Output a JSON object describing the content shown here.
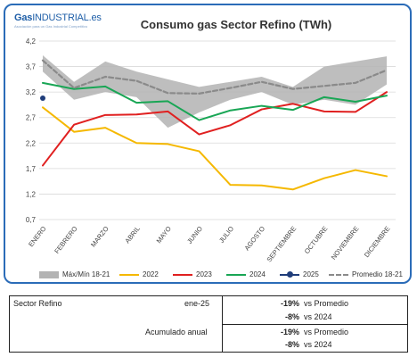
{
  "logo": {
    "brand_bold": "Gas",
    "brand_rest": "INDUSTRIAL.es",
    "tagline": "Asociación para un Gas Industrial Competitivo"
  },
  "chart_data": {
    "type": "line",
    "title": "Consumo gas Sector Refino (TWh)",
    "categories": [
      "ENERO",
      "FEBRERO",
      "MARZO",
      "ABRIL",
      "MAYO",
      "JUNIO",
      "JULIO",
      "AGOSTO",
      "SEPTIEMBRE",
      "OCTUBRE",
      "NOVIEMBRE",
      "DICIEMBRE"
    ],
    "ylim": [
      0.7,
      4.2
    ],
    "yticks": [
      "0,7",
      "1,2",
      "1,7",
      "2,2",
      "2,7",
      "3,2",
      "3,7",
      "4,2"
    ],
    "yticks_values": [
      0.7,
      1.2,
      1.7,
      2.2,
      2.7,
      3.2,
      3.7,
      4.2
    ],
    "grid": true,
    "legend_position": "bottom",
    "band": {
      "name": "Máx/Mín 18-21",
      "color": "#b3b3b3",
      "max": [
        3.92,
        3.4,
        3.8,
        3.6,
        3.45,
        3.3,
        3.4,
        3.5,
        3.3,
        3.7,
        3.8,
        3.9
      ],
      "min": [
        3.6,
        3.05,
        3.2,
        3.1,
        2.5,
        2.8,
        3.05,
        3.2,
        2.95,
        3.05,
        2.95,
        3.35
      ]
    },
    "series": [
      {
        "name": "2022",
        "color": "#f5b800",
        "style": "solid",
        "values": [
          2.9,
          2.42,
          2.5,
          2.2,
          2.18,
          2.04,
          1.38,
          1.37,
          1.29,
          1.51,
          1.67,
          1.55
        ]
      },
      {
        "name": "2023",
        "color": "#e02020",
        "style": "solid",
        "values": [
          1.76,
          2.56,
          2.75,
          2.76,
          2.82,
          2.37,
          2.55,
          2.86,
          2.97,
          2.82,
          2.81,
          3.2
        ]
      },
      {
        "name": "2024",
        "color": "#19a655",
        "style": "solid",
        "values": [
          3.38,
          3.26,
          3.31,
          2.99,
          3.02,
          2.65,
          2.84,
          2.93,
          2.85,
          3.1,
          3.01,
          3.13
        ]
      },
      {
        "name": "2025",
        "color": "#1f3d7a",
        "style": "marker",
        "values": [
          3.08,
          null,
          null,
          null,
          null,
          null,
          null,
          null,
          null,
          null,
          null,
          null
        ]
      },
      {
        "name": "Promedio 18-21",
        "color": "#8a8a8a",
        "style": "dashed",
        "values": [
          3.82,
          3.28,
          3.5,
          3.42,
          3.18,
          3.17,
          3.28,
          3.4,
          3.26,
          3.32,
          3.38,
          3.63
        ]
      }
    ]
  },
  "summary": {
    "sector": "Sector Refino",
    "month": "ene-25",
    "accum_label": "Acumulado anual",
    "monthly": [
      {
        "pct": "-19%",
        "label": "vs Promedio"
      },
      {
        "pct": "-8%",
        "label": "vs 2024"
      }
    ],
    "accumulated": [
      {
        "pct": "-19%",
        "label": "vs Promedio"
      },
      {
        "pct": "-8%",
        "label": "vs 2024"
      }
    ]
  }
}
